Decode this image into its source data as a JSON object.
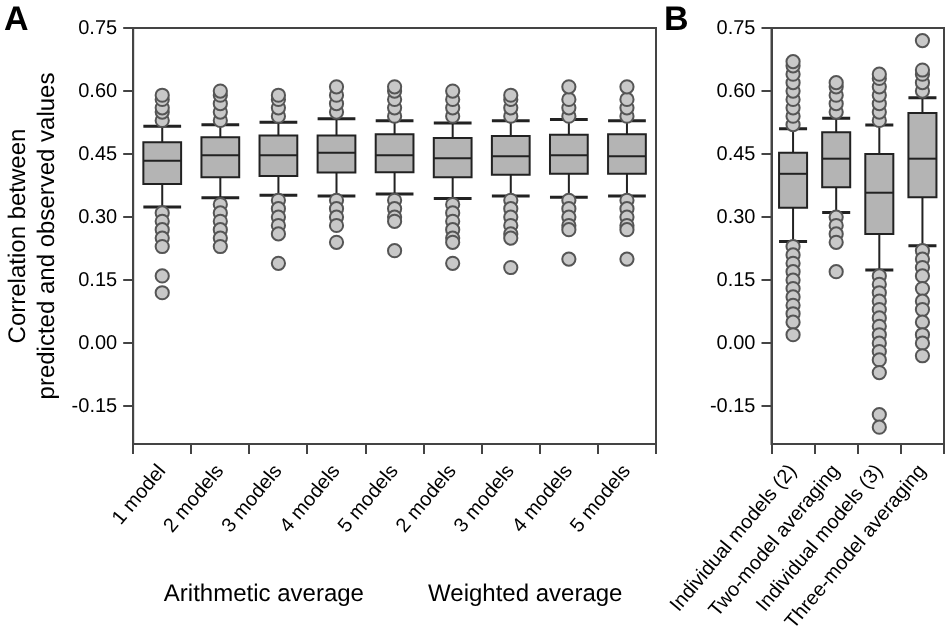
{
  "chart_data": [
    {
      "type": "box",
      "title": "A",
      "ylabel": "Correlation between predicted and observed values",
      "color": "#b4b4b4",
      "categories": [
        "1 model",
        "2 models",
        "3 models",
        "4 models",
        "5 models",
        "2 models",
        "3 models",
        "4 models",
        "5 models"
      ],
      "boxes": [
        {
          "low": 0.324,
          "q1": 0.379,
          "median": 0.434,
          "q3": 0.478,
          "high": 0.516,
          "outliers": [
            0.53,
            0.55,
            0.56,
            0.58,
            0.59,
            0.31,
            0.29,
            0.27,
            0.25,
            0.23,
            0.16,
            0.12
          ]
        },
        {
          "low": 0.346,
          "q1": 0.395,
          "median": 0.447,
          "q3": 0.49,
          "high": 0.52,
          "outliers": [
            0.53,
            0.55,
            0.57,
            0.59,
            0.6,
            0.33,
            0.31,
            0.29,
            0.27,
            0.25,
            0.23
          ]
        },
        {
          "low": 0.352,
          "q1": 0.398,
          "median": 0.447,
          "q3": 0.494,
          "high": 0.526,
          "outliers": [
            0.54,
            0.56,
            0.58,
            0.59,
            0.34,
            0.32,
            0.3,
            0.28,
            0.26,
            0.19
          ]
        },
        {
          "low": 0.35,
          "q1": 0.406,
          "median": 0.453,
          "q3": 0.494,
          "high": 0.534,
          "outliers": [
            0.55,
            0.57,
            0.59,
            0.61,
            0.34,
            0.32,
            0.3,
            0.28,
            0.24
          ]
        },
        {
          "low": 0.355,
          "q1": 0.407,
          "median": 0.447,
          "q3": 0.497,
          "high": 0.529,
          "outliers": [
            0.54,
            0.56,
            0.58,
            0.6,
            0.61,
            0.34,
            0.32,
            0.3,
            0.29,
            0.22
          ]
        },
        {
          "low": 0.344,
          "q1": 0.395,
          "median": 0.44,
          "q3": 0.488,
          "high": 0.524,
          "outliers": [
            0.54,
            0.56,
            0.58,
            0.6,
            0.33,
            0.31,
            0.29,
            0.27,
            0.25,
            0.24,
            0.19
          ]
        },
        {
          "low": 0.35,
          "q1": 0.401,
          "median": 0.445,
          "q3": 0.493,
          "high": 0.529,
          "outliers": [
            0.54,
            0.56,
            0.58,
            0.59,
            0.34,
            0.32,
            0.3,
            0.28,
            0.26,
            0.25,
            0.18
          ]
        },
        {
          "low": 0.347,
          "q1": 0.403,
          "median": 0.447,
          "q3": 0.496,
          "high": 0.532,
          "outliers": [
            0.54,
            0.56,
            0.58,
            0.61,
            0.34,
            0.32,
            0.3,
            0.28,
            0.27,
            0.2
          ]
        },
        {
          "low": 0.35,
          "q1": 0.403,
          "median": 0.445,
          "q3": 0.497,
          "high": 0.529,
          "outliers": [
            0.54,
            0.56,
            0.58,
            0.61,
            0.34,
            0.32,
            0.3,
            0.28,
            0.27,
            0.2
          ]
        }
      ],
      "ylim": [
        -0.24,
        0.75
      ],
      "yticks": [
        {
          "value": -0.15,
          "label": "-0.15"
        },
        {
          "value": 0,
          "label": "0.00"
        },
        0.15,
        {
          "value": 0.3,
          "label": "0.30"
        },
        0.45,
        {
          "value": 0.6,
          "label": "0.60"
        },
        0.75
      ],
      "annotations": [
        "Arithmetic average",
        "Weighted average"
      ]
    },
    {
      "type": "box",
      "title": "B",
      "color": "#b4b4b4",
      "categories": [
        "Individual models (2)",
        "Two-model averaging",
        "Individual models (3)",
        "Three-model averaging"
      ],
      "boxes": [
        {
          "low": 0.242,
          "q1": 0.322,
          "median": 0.403,
          "q3": 0.453,
          "high": 0.51,
          "outliers": [
            0.52,
            0.54,
            0.56,
            0.58,
            0.6,
            0.62,
            0.64,
            0.66,
            0.67,
            0.23,
            0.21,
            0.19,
            0.17,
            0.15,
            0.13,
            0.11,
            0.09,
            0.07,
            0.05,
            0.02
          ]
        },
        {
          "low": 0.311,
          "q1": 0.371,
          "median": 0.439,
          "q3": 0.502,
          "high": 0.535,
          "outliers": [
            0.55,
            0.57,
            0.59,
            0.61,
            0.62,
            0.3,
            0.28,
            0.26,
            0.24,
            0.17
          ]
        },
        {
          "low": 0.174,
          "q1": 0.26,
          "median": 0.358,
          "q3": 0.45,
          "high": 0.519,
          "outliers": [
            0.53,
            0.55,
            0.57,
            0.59,
            0.61,
            0.63,
            0.64,
            0.16,
            0.14,
            0.12,
            0.1,
            0.08,
            0.06,
            0.04,
            0.02,
            0,
            -0.02,
            -0.04,
            -0.07,
            -0.17,
            -0.2
          ]
        },
        {
          "low": 0.232,
          "q1": 0.347,
          "median": 0.439,
          "q3": 0.548,
          "high": 0.584,
          "outliers": [
            0.6,
            0.62,
            0.64,
            0.65,
            0.72,
            0.22,
            0.2,
            0.18,
            0.16,
            0.13,
            0.1,
            0.08,
            0.05,
            0.02,
            0,
            -0.03
          ]
        }
      ],
      "ylim": [
        -0.24,
        0.75
      ],
      "yticks": [
        {
          "value": -0.15,
          "label": "-0.15"
        },
        {
          "value": 0,
          "label": "0.00"
        },
        0.15,
        {
          "value": 0.3,
          "label": "0.30"
        },
        0.45,
        {
          "value": 0.6,
          "label": "0.60"
        },
        0.75
      ]
    }
  ]
}
